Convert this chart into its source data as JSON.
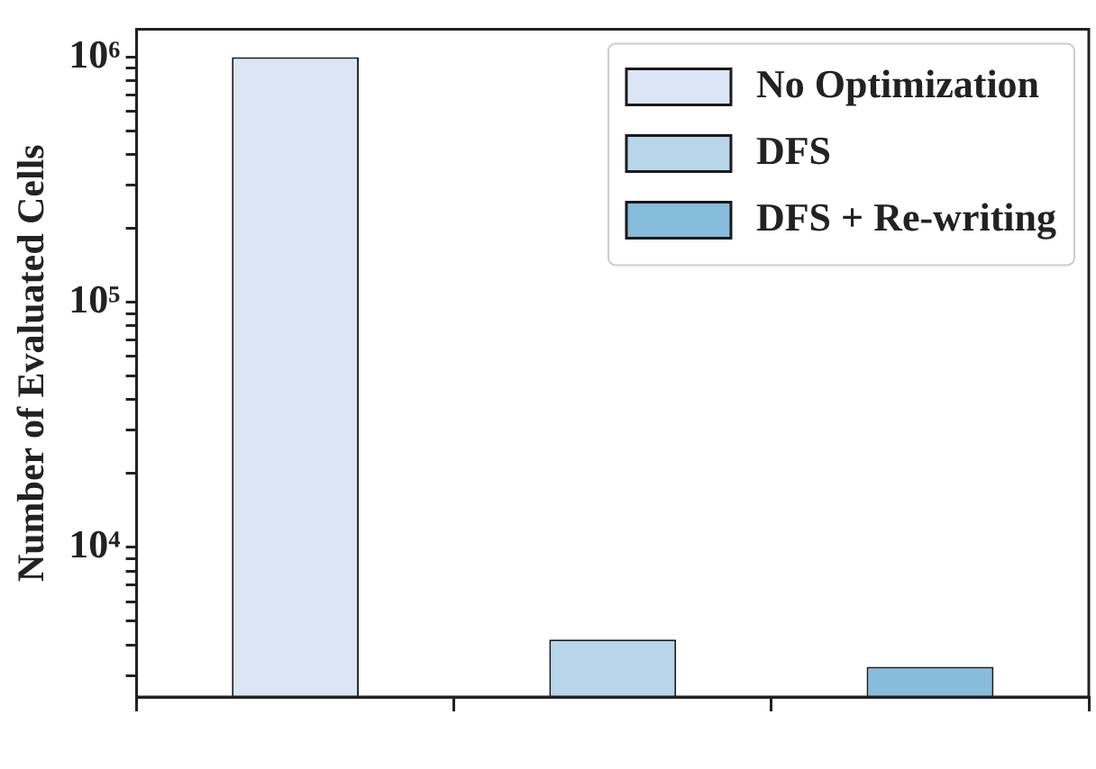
{
  "chart_data": {
    "type": "bar",
    "ylabel": "Number of Evaluated Cells",
    "categories": [
      null,
      null,
      null
    ],
    "series": [
      {
        "name": "No Optimization",
        "color": "#dae6f4",
        "values": [
          1000000,
          null,
          null
        ]
      },
      {
        "name": "DFS",
        "color": "#b8d6ea",
        "values": [
          null,
          4200,
          null
        ]
      },
      {
        "name": "DFS + Re-writing",
        "color": "#86bcdc",
        "values": [
          null,
          null,
          3250
        ]
      }
    ],
    "log": "y",
    "ylim": [
      2450,
      1300000
    ],
    "yticks": [
      {
        "value": 3000,
        "label": null
      },
      {
        "value": 4000,
        "label": null
      },
      {
        "value": 5000,
        "label": null
      },
      {
        "value": 6000,
        "label": null
      },
      {
        "value": 7000,
        "label": null
      },
      {
        "value": 8000,
        "label": null
      },
      {
        "value": 9000,
        "label": null
      },
      {
        "value": 10000,
        "label": "10⁴"
      },
      {
        "value": 20000,
        "label": null
      },
      {
        "value": 30000,
        "label": null
      },
      {
        "value": 40000,
        "label": null
      },
      {
        "value": 50000,
        "label": null
      },
      {
        "value": 60000,
        "label": null
      },
      {
        "value": 70000,
        "label": null
      },
      {
        "value": 80000,
        "label": null
      },
      {
        "value": 90000,
        "label": null
      },
      {
        "value": 100000,
        "label": "10⁵"
      },
      {
        "value": 200000,
        "label": null
      },
      {
        "value": 300000,
        "label": null
      },
      {
        "value": 400000,
        "label": null
      },
      {
        "value": 500000,
        "label": null
      },
      {
        "value": 600000,
        "label": null
      },
      {
        "value": 700000,
        "label": null
      },
      {
        "value": 800000,
        "label": null
      },
      {
        "value": 900000,
        "label": null
      },
      {
        "value": 1000000,
        "label": "10⁶"
      }
    ],
    "grid": false,
    "legend": "top right"
  }
}
